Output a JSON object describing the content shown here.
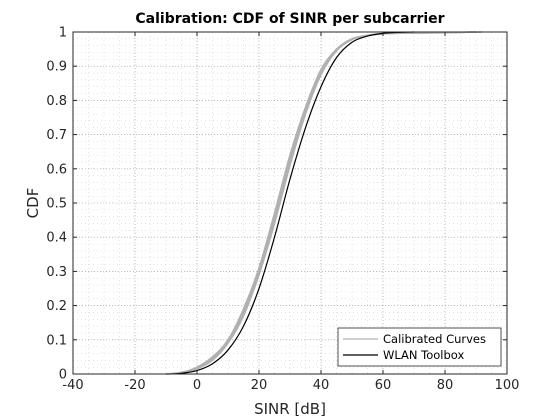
{
  "chart_data": {
    "type": "line",
    "title": "Calibration: CDF of SINR per subcarrier",
    "xlabel": "SINR [dB]",
    "ylabel": "CDF",
    "xlim": [
      -40,
      100
    ],
    "ylim": [
      0,
      1
    ],
    "xticks": [
      "-40",
      "-20",
      "0",
      "20",
      "40",
      "60",
      "80",
      "100"
    ],
    "yticks": [
      "0",
      "0.1",
      "0.2",
      "0.3",
      "0.4",
      "0.5",
      "0.6",
      "0.7",
      "0.8",
      "0.9",
      "1"
    ],
    "grid": "major and minor (dotted)",
    "legend_position": "bottom-right",
    "series": [
      {
        "name": "Calibrated Curves",
        "color": "#b0b0b0",
        "x": [
          -10,
          -5,
          0,
          5,
          10,
          15,
          20,
          25,
          30,
          35,
          40,
          45,
          50,
          55,
          60,
          70,
          80,
          92
        ],
        "y": [
          0.0,
          0.005,
          0.02,
          0.05,
          0.1,
          0.19,
          0.31,
          0.47,
          0.64,
          0.78,
          0.89,
          0.95,
          0.98,
          0.99,
          0.995,
          0.997,
          0.998,
          1.0
        ]
      },
      {
        "name": "Calibrated Curves",
        "color": "#b0b0b0",
        "x": [
          -10,
          -5,
          0,
          5,
          10,
          15,
          20,
          25,
          30,
          35,
          40,
          45,
          50,
          55,
          60,
          70,
          80,
          90
        ],
        "y": [
          0.0,
          0.003,
          0.015,
          0.04,
          0.09,
          0.17,
          0.29,
          0.44,
          0.61,
          0.76,
          0.875,
          0.945,
          0.978,
          0.99,
          0.995,
          0.997,
          0.998,
          1.0
        ]
      },
      {
        "name": "Calibrated Curves",
        "color": "#b0b0b0",
        "x": [
          -10,
          -5,
          0,
          5,
          10,
          15,
          20,
          25,
          30,
          35,
          40,
          45,
          50,
          55,
          60,
          70,
          80,
          90
        ],
        "y": [
          0.0,
          0.004,
          0.017,
          0.045,
          0.095,
          0.18,
          0.3,
          0.455,
          0.625,
          0.77,
          0.88,
          0.948,
          0.98,
          0.99,
          0.996,
          0.997,
          0.998,
          1.0
        ]
      },
      {
        "name": "WLAN Toolbox",
        "color": "#000000",
        "x": [
          -8,
          -5,
          0,
          5,
          10,
          15,
          20,
          25,
          30,
          35,
          40,
          45,
          50,
          55,
          60,
          65,
          70
        ],
        "y": [
          0.0,
          0.002,
          0.01,
          0.03,
          0.07,
          0.14,
          0.25,
          0.4,
          0.57,
          0.72,
          0.84,
          0.925,
          0.97,
          0.988,
          0.996,
          0.999,
          1.0
        ]
      }
    ],
    "legend": [
      "Calibrated Curves",
      "WLAN Toolbox"
    ]
  }
}
